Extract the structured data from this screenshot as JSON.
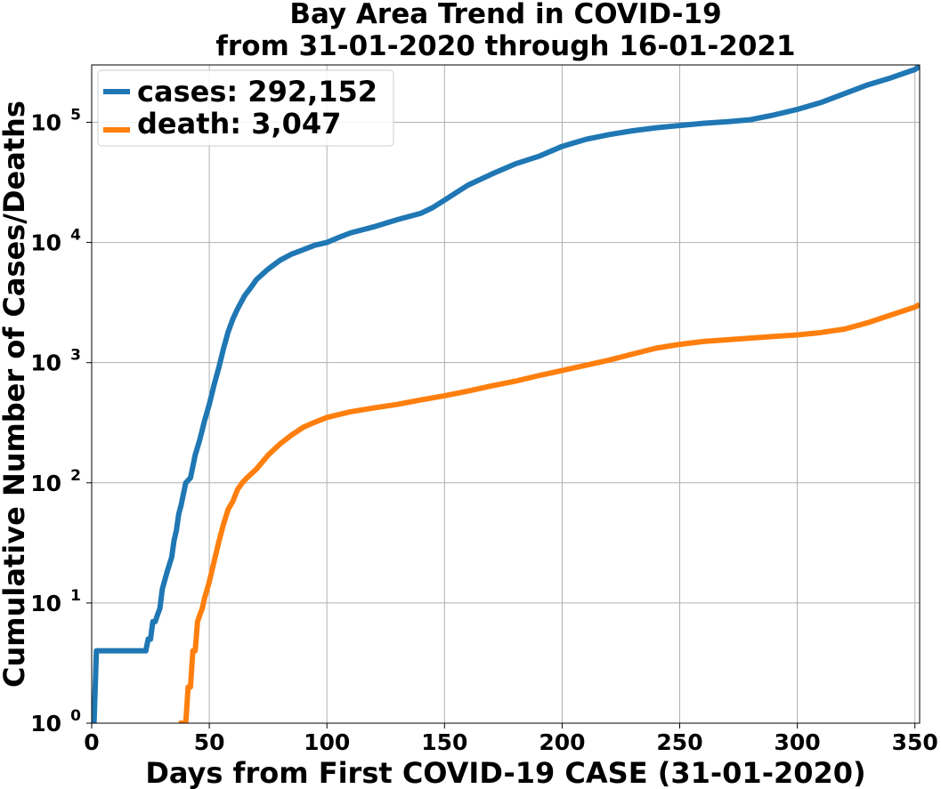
{
  "chart_data": {
    "type": "line",
    "title": "Bay Area Trend in COVID-19",
    "subtitle": "from 31-01-2020 through 16-01-2021",
    "xlabel": "Days from First COVID-19 CASE (31-01-2020)",
    "ylabel": "Cumulative Number of Cases/Deaths",
    "xlim": [
      0,
      352
    ],
    "ylim": [
      1,
      300000
    ],
    "yscale": "log",
    "grid": true,
    "legend_position": "top-left",
    "x_ticks": [
      0,
      50,
      100,
      150,
      200,
      250,
      300,
      350
    ],
    "y_ticks": [
      1,
      10,
      100,
      1000,
      10000,
      100000
    ],
    "y_tick_labels": [
      "10^0",
      "10^1",
      "10^2",
      "10^3",
      "10^4",
      "10^5"
    ],
    "series": [
      {
        "name": "cases: 292,152",
        "color": "#1f77b4",
        "x": [
          0,
          1,
          2,
          10,
          20,
          23,
          24,
          25,
          26,
          27,
          28,
          29,
          30,
          32,
          34,
          35,
          36,
          37,
          38,
          40,
          42,
          44,
          46,
          48,
          50,
          52,
          54,
          56,
          58,
          60,
          62,
          65,
          68,
          70,
          75,
          80,
          85,
          90,
          95,
          100,
          105,
          110,
          120,
          130,
          140,
          145,
          150,
          155,
          160,
          170,
          180,
          190,
          200,
          210,
          220,
          230,
          240,
          250,
          260,
          270,
          280,
          290,
          300,
          310,
          320,
          330,
          340,
          350,
          352
        ],
        "values": [
          1,
          1,
          4,
          4,
          4,
          4,
          5,
          5,
          7,
          7,
          8,
          9,
          13,
          18,
          24,
          33,
          40,
          55,
          65,
          100,
          110,
          170,
          230,
          330,
          450,
          650,
          900,
          1300,
          1800,
          2300,
          2800,
          3600,
          4300,
          4900,
          6000,
          7100,
          8000,
          8700,
          9500,
          10000,
          11000,
          12000,
          13500,
          15500,
          17500,
          19500,
          22500,
          26000,
          30000,
          37000,
          45000,
          52000,
          63000,
          72000,
          79000,
          85000,
          90000,
          94000,
          98000,
          101000,
          105000,
          115000,
          128000,
          146000,
          173000,
          205000,
          235000,
          275000,
          292152
        ]
      },
      {
        "name": "death: 3,047",
        "color": "#ff7f0e",
        "x": [
          37,
          40,
          41,
          42,
          43,
          44,
          45,
          46,
          47,
          48,
          50,
          52,
          54,
          56,
          58,
          60,
          62,
          64,
          66,
          70,
          75,
          80,
          85,
          90,
          95,
          100,
          110,
          120,
          130,
          140,
          150,
          160,
          170,
          180,
          190,
          200,
          210,
          220,
          230,
          240,
          250,
          260,
          270,
          280,
          290,
          300,
          310,
          320,
          330,
          340,
          350,
          352
        ],
        "values": [
          1,
          1,
          2,
          2,
          4,
          4,
          7,
          8,
          9,
          11,
          15,
          22,
          32,
          45,
          60,
          70,
          88,
          100,
          110,
          130,
          170,
          210,
          250,
          290,
          320,
          350,
          390,
          420,
          450,
          490,
          530,
          580,
          640,
          700,
          780,
          860,
          950,
          1050,
          1180,
          1320,
          1420,
          1500,
          1550,
          1600,
          1650,
          1700,
          1780,
          1900,
          2150,
          2500,
          2900,
          3047
        ]
      }
    ]
  }
}
